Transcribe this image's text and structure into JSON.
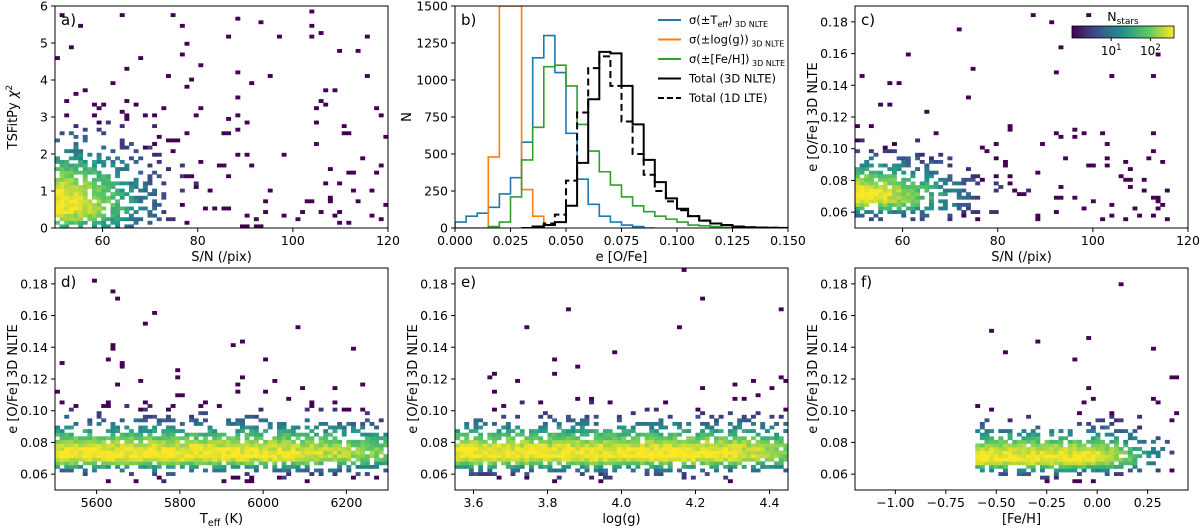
{
  "colors": {
    "viridis": [
      "#440154",
      "#3b528b",
      "#21918c",
      "#5ec962",
      "#fde725"
    ],
    "teff": "#1f77b4",
    "logg": "#ff7f0e",
    "feh": "#2ca02c",
    "total": "#000000"
  },
  "chart_data": [
    {
      "type": "heatmap",
      "panel": "a)",
      "xlabel": "S/N (/pix)",
      "ylabel": "TSFitPy χ²",
      "xlim": [
        50,
        120
      ],
      "ylim": [
        0,
        6
      ],
      "xticks": [
        60,
        80,
        100,
        120
      ],
      "yticks": [
        0,
        1,
        2,
        3,
        4,
        5,
        6
      ],
      "density": {
        "x_min": 50,
        "x_max": 120,
        "x_peak": 51,
        "x_scale": 11,
        "y_min": 0,
        "y_max": 6,
        "y_peak": 0.6,
        "y_scale": 1.0,
        "y_shrink": 0.0012,
        "y_edge": 6
      }
    },
    {
      "type": "line",
      "panel": "b)",
      "xlabel": "e [O/Fe]",
      "ylabel": "N",
      "xlim": [
        0.0,
        0.15
      ],
      "ylim": [
        0,
        1500
      ],
      "xticks": [
        "0.000",
        "0.025",
        "0.050",
        "0.075",
        "0.100",
        "0.125",
        "0.150"
      ],
      "yticks": [
        0,
        250,
        500,
        750,
        1000,
        1250,
        1500
      ],
      "legend": [
        {
          "label": "σ(±T_eff)_3D NLTE",
          "main": "σ(±T",
          "sub": "eff",
          "tail": ")",
          "sub2": "3D NLTE",
          "color": "#1f77b4",
          "dash": false
        },
        {
          "label": "σ(±log(g))_3D NLTE",
          "main": "σ(±log(g))",
          "sub": "",
          "tail": "",
          "sub2": "3D NLTE",
          "color": "#ff7f0e",
          "dash": false
        },
        {
          "label": "σ(±[Fe/H])_3D NLTE",
          "main": "σ(±[Fe/H])",
          "sub": "",
          "tail": "",
          "sub2": "3D NLTE",
          "color": "#2ca02c",
          "dash": false
        },
        {
          "label": "Total (3D NLTE)",
          "main": "Total (3D NLTE)",
          "sub": "",
          "tail": "",
          "sub2": "",
          "color": "#000000",
          "dash": false
        },
        {
          "label": "Total (1D LTE)",
          "main": "Total (1D LTE)",
          "sub": "",
          "tail": "",
          "sub2": "",
          "color": "#000000",
          "dash": true
        }
      ],
      "series": [
        {
          "name": "sigma_teff",
          "color": "#1f77b4",
          "dash": false,
          "bin_start": 0.0,
          "bin_width": 0.005,
          "values": [
            40,
            80,
            100,
            140,
            230,
            340,
            580,
            1150,
            1300,
            1050,
            640,
            330,
            160,
            80,
            40,
            20,
            10,
            0
          ]
        },
        {
          "name": "sigma_logg",
          "color": "#ff7f0e",
          "dash": false,
          "bin_start": 0.0,
          "bin_width": 0.005,
          "values": [
            0,
            0,
            0,
            480,
            1500,
            1500,
            260,
            80,
            0
          ]
        },
        {
          "name": "sigma_feh",
          "color": "#2ca02c",
          "dash": false,
          "bin_start": 0.015,
          "bin_width": 0.005,
          "values": [
            10,
            40,
            210,
            460,
            680,
            1090,
            1100,
            960,
            700,
            520,
            380,
            290,
            210,
            150,
            110,
            80,
            60,
            40,
            20,
            15,
            10,
            5,
            5
          ]
        },
        {
          "name": "total_3d_nlte",
          "color": "#000000",
          "dash": false,
          "bin_start": 0.03,
          "bin_width": 0.005,
          "values": [
            0,
            10,
            20,
            40,
            150,
            440,
            870,
            1190,
            1180,
            960,
            700,
            460,
            310,
            200,
            130,
            80,
            50,
            30,
            20,
            10,
            5,
            3,
            2,
            1
          ]
        },
        {
          "name": "total_1d_lte",
          "color": "#000000",
          "dash": true,
          "bin_start": 0.035,
          "bin_width": 0.005,
          "values": [
            10,
            30,
            90,
            320,
            780,
            1080,
            1160,
            960,
            720,
            500,
            360,
            250,
            180,
            120,
            80,
            50,
            30,
            20,
            10,
            5,
            3,
            2
          ]
        }
      ]
    },
    {
      "type": "heatmap",
      "panel": "c)",
      "xlabel": "S/N (/pix)",
      "ylabel": "e [O/Fe] 3D NLTE",
      "xlim": [
        50,
        120
      ],
      "ylim": [
        0.05,
        0.19
      ],
      "xticks": [
        60,
        80,
        100,
        120
      ],
      "yticks": [
        "0.06",
        "0.08",
        "0.10",
        "0.12",
        "0.14",
        "0.16",
        "0.18"
      ],
      "colorbar": {
        "label": "N",
        "label_sub": "stars",
        "ticks": [
          {
            "base": "10",
            "exp": "1",
            "value": 10
          },
          {
            "base": "10",
            "exp": "2",
            "value": 100
          }
        ],
        "range": [
          1,
          400
        ]
      },
      "density": {
        "x_min": 50,
        "x_max": 116,
        "x_peak": 52,
        "x_scale": 12,
        "y_min": 0.055,
        "y_max": 0.19,
        "y_peak": 0.07,
        "y_scale": 0.014,
        "y_shrink": 8e-05,
        "y_edge": 0.19
      }
    },
    {
      "type": "heatmap",
      "panel": "d)",
      "xlabel": "T_eff (K)",
      "xlabel_main": "T",
      "xlabel_sub": "eff",
      "xlabel_tail": " (K)",
      "ylabel": "e [O/Fe] 3D NLTE",
      "xlim": [
        5500,
        6300
      ],
      "ylim": [
        0.05,
        0.19
      ],
      "xticks": [
        5600,
        5800,
        6000,
        6200
      ],
      "yticks": [
        "0.06",
        "0.08",
        "0.10",
        "0.12",
        "0.14",
        "0.16",
        "0.18"
      ],
      "density": {
        "x_min": 5500,
        "x_max": 6300,
        "x_peak": 5950,
        "x_scale": 400,
        "y_min": 0.055,
        "y_max": 0.19,
        "y_peak": 0.072,
        "y_scale": 0.012,
        "y_shrink": 0.0,
        "y_edge": 0.19
      }
    },
    {
      "type": "heatmap",
      "panel": "e)",
      "xlabel": "log(g)",
      "ylabel": "e [O/Fe] 3D NLTE",
      "xlim": [
        3.55,
        4.45
      ],
      "ylim": [
        0.05,
        0.19
      ],
      "xticks": [
        "3.6",
        "3.8",
        "4.0",
        "4.2",
        "4.4"
      ],
      "yticks": [
        "0.06",
        "0.08",
        "0.10",
        "0.12",
        "0.14",
        "0.16",
        "0.18"
      ],
      "density": {
        "x_min": 3.55,
        "x_max": 4.45,
        "x_peak": 4.25,
        "x_scale": 0.25,
        "y_min": 0.055,
        "y_max": 0.19,
        "y_peak": 0.072,
        "y_scale": 0.012,
        "y_shrink": 0.0,
        "y_edge": 0.19
      }
    },
    {
      "type": "heatmap",
      "panel": "f)",
      "xlabel": "[Fe/H]",
      "ylabel": "e [O/Fe] 3D NLTE",
      "xlim": [
        -1.2,
        0.45
      ],
      "ylim": [
        0.05,
        0.19
      ],
      "xticks": [
        "−1.00",
        "−0.75",
        "−0.50",
        "−0.25",
        "0.00",
        "0.25"
      ],
      "yticks": [
        "0.06",
        "0.08",
        "0.10",
        "0.12",
        "0.14",
        "0.16",
        "0.18"
      ],
      "density": {
        "x_min": -0.6,
        "x_max": 0.4,
        "x_peak": -0.05,
        "x_scale": 0.22,
        "y_min": 0.055,
        "y_max": 0.19,
        "y_peak": 0.07,
        "y_scale": 0.011,
        "y_shrink": 0.0,
        "y_edge": 0.19
      }
    }
  ]
}
